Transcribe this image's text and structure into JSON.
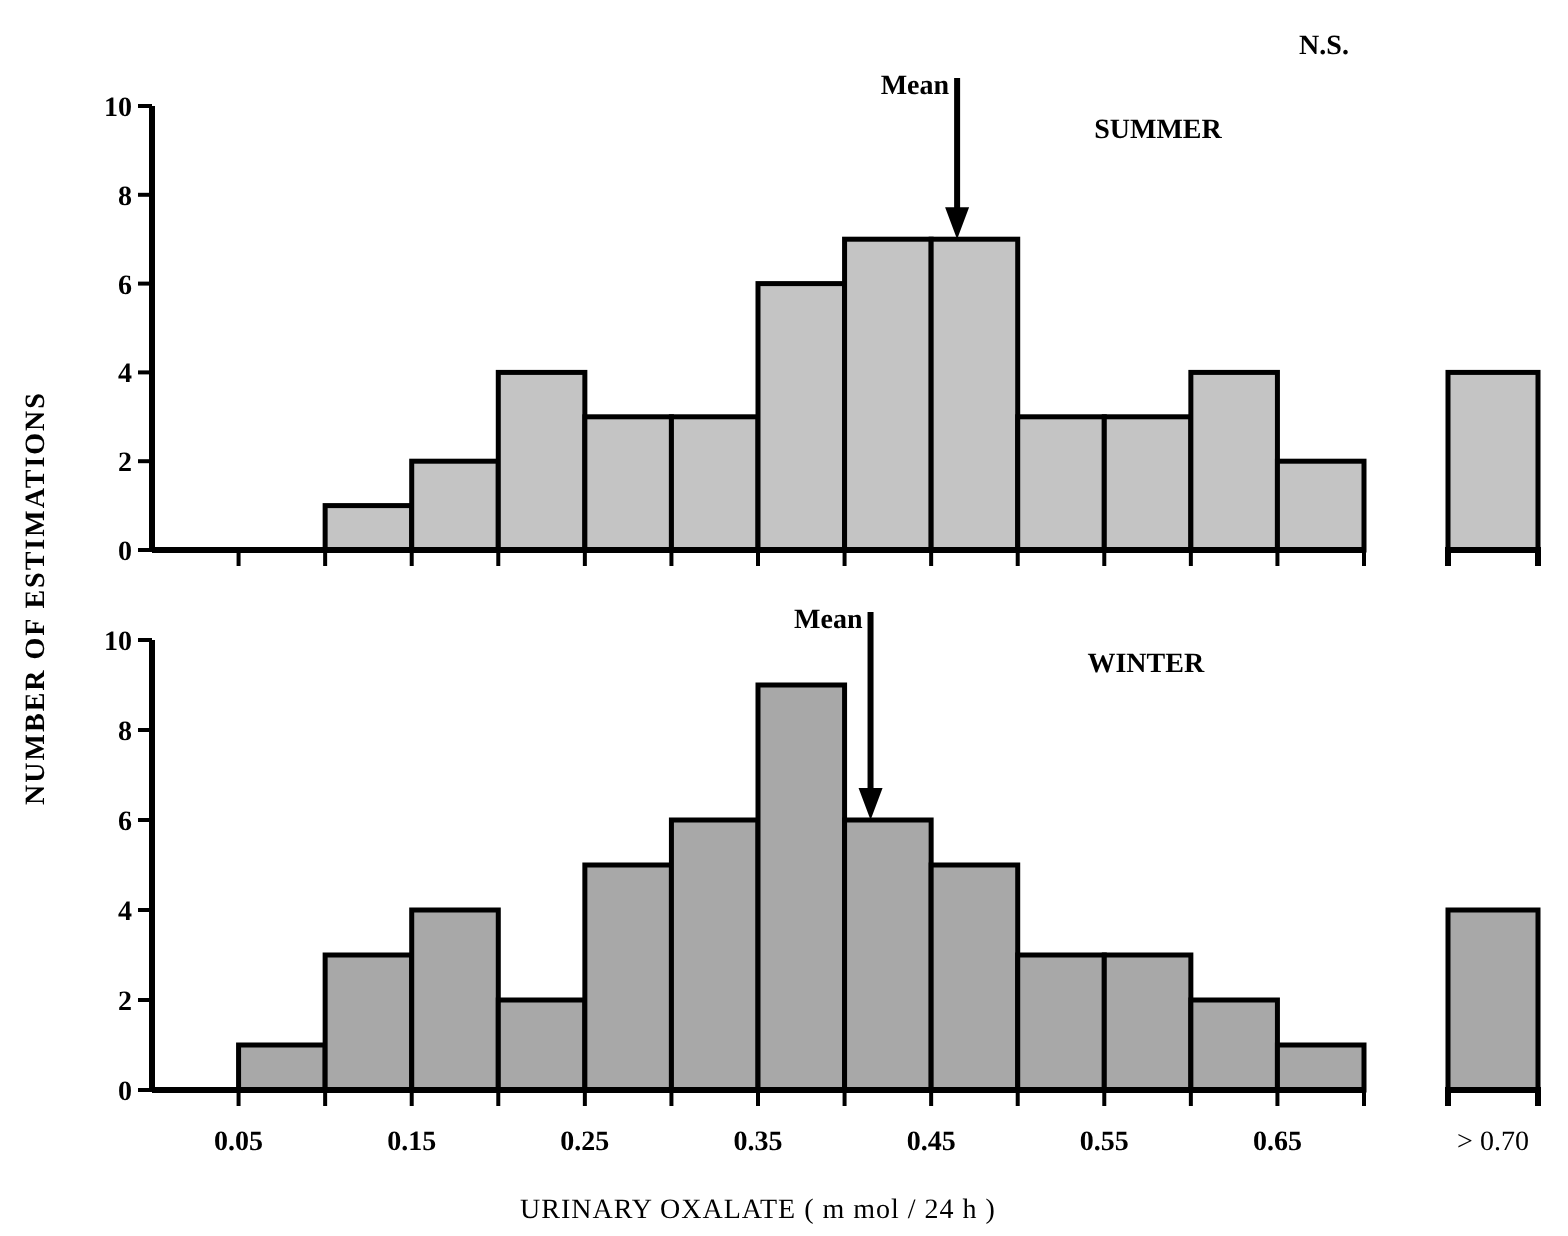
{
  "chart_data": [
    {
      "type": "histogram",
      "title": "SUMMER",
      "ylabel": "NUMBER OF ESTIMATIONS",
      "color": "#c4c4c4",
      "bins": [
        0,
        0.05,
        0.1,
        0.15,
        0.2,
        0.25,
        0.3,
        0.35,
        0.4,
        0.45,
        0.5,
        0.55,
        0.6,
        0.65,
        0.7
      ],
      "values": [
        0,
        0,
        1,
        2,
        4,
        3,
        3,
        6,
        7,
        7,
        3,
        3,
        4,
        2
      ],
      "xlim": [
        0,
        0.7
      ],
      "xticks": [
        {
          "value": 0.05,
          "label": null
        },
        {
          "value": 0.1,
          "label": null
        },
        {
          "value": 0.15,
          "label": null
        },
        {
          "value": 0.2,
          "label": null
        },
        {
          "value": 0.25,
          "label": null
        },
        {
          "value": 0.3,
          "label": null
        },
        {
          "value": 0.35,
          "label": null
        },
        {
          "value": 0.4,
          "label": null
        },
        {
          "value": 0.45,
          "label": null
        },
        {
          "value": 0.5,
          "label": null
        },
        {
          "value": 0.55,
          "label": null
        },
        {
          "value": 0.6,
          "label": null
        },
        {
          "value": 0.65,
          "label": null
        },
        {
          "value": 0.7,
          "label": null
        }
      ],
      "ylim": [
        0,
        10
      ],
      "yticks": [
        0,
        2,
        4,
        6,
        8,
        10
      ],
      "tick_labels": "y",
      "annotations": [
        "N.S."
      ],
      "ref_lines": [
        {
          "axis": "x",
          "value": 0.465,
          "label": "Mean"
        }
      ]
    },
    {
      "type": "bar",
      "categories": [
        null
      ],
      "values": [
        4
      ],
      "color": "#c4c4c4",
      "ylim": [
        0,
        10
      ],
      "tick_labels": false
    },
    {
      "type": "histogram",
      "title": "WINTER",
      "xlabel": "URINARY  OXALATE  ( m mol / 24 h )",
      "color": "#a8a8a8",
      "bins": [
        0,
        0.05,
        0.1,
        0.15,
        0.2,
        0.25,
        0.3,
        0.35,
        0.4,
        0.45,
        0.5,
        0.55,
        0.6,
        0.65,
        0.7
      ],
      "values": [
        0,
        1,
        3,
        4,
        2,
        5,
        6,
        9,
        6,
        5,
        3,
        3,
        2,
        1
      ],
      "xlim": [
        0,
        0.7
      ],
      "xticks": [
        0.05,
        {
          "value": 0.1,
          "label": null
        },
        0.15,
        {
          "value": 0.2,
          "label": null
        },
        0.25,
        {
          "value": 0.3,
          "label": null
        },
        0.35,
        {
          "value": 0.4,
          "label": null
        },
        0.45,
        {
          "value": 0.5,
          "label": null
        },
        0.55,
        {
          "value": 0.6,
          "label": null
        },
        0.65,
        {
          "value": 0.7,
          "label": null
        }
      ],
      "ylim": [
        0,
        10
      ],
      "yticks": [
        0,
        2,
        4,
        6,
        8,
        10
      ],
      "ref_lines": [
        {
          "axis": "x",
          "value": 0.415,
          "label": "Mean"
        }
      ]
    },
    {
      "type": "bar",
      "categories": [
        "> 0.70"
      ],
      "values": [
        4
      ],
      "color": "#a8a8a8",
      "ylim": [
        0,
        10
      ],
      "tick_labels": "x"
    }
  ]
}
